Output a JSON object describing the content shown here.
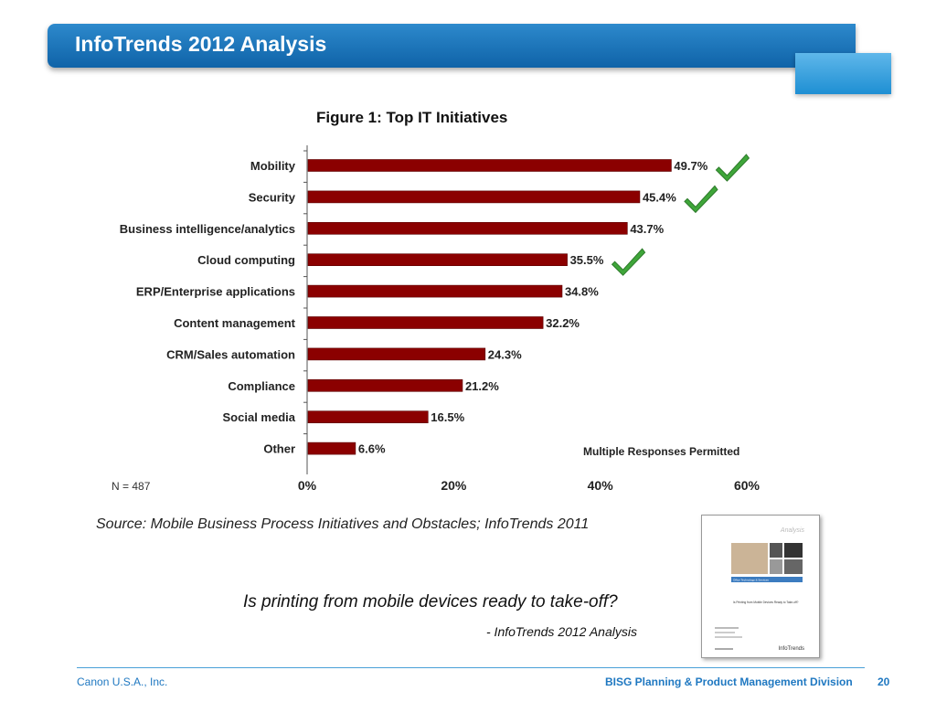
{
  "slide": {
    "title": "InfoTrends 2012 Analysis",
    "source_note": "Source: Mobile Business Process Initiatives and Obstacles; InfoTrends 2011",
    "quote": "Is printing from mobile devices ready to take-off?",
    "quote_attribution": "- InfoTrends 2012 Analysis",
    "footer_left": "Canon U.S.A., Inc.",
    "footer_right": "BISG Planning & Product Management Division",
    "page_number": "20"
  },
  "colors": {
    "bar_fill": "#8b0000",
    "title_bar": "#1670b8",
    "checkmark": "#3fa63a",
    "footer_text": "#1f78c1"
  },
  "chart_data": {
    "type": "bar",
    "orientation": "horizontal",
    "title": "Figure 1: Top IT Initiatives",
    "categories": [
      "Mobility",
      "Security",
      "Business intelligence/analytics",
      "Cloud computing",
      "ERP/Enterprise applications",
      "Content management",
      "CRM/Sales automation",
      "Compliance",
      "Social media",
      "Other"
    ],
    "values": [
      49.7,
      45.4,
      43.7,
      35.5,
      34.8,
      32.2,
      24.3,
      21.2,
      16.5,
      6.6
    ],
    "value_labels": [
      "49.7%",
      "45.4%",
      "43.7%",
      "35.5%",
      "34.8%",
      "32.2%",
      "24.3%",
      "21.2%",
      "16.5%",
      "6.6%"
    ],
    "checkmarked": [
      "Mobility",
      "Security",
      "Cloud computing"
    ],
    "xlim": [
      0,
      60
    ],
    "x_ticks": [
      "0%",
      "20%",
      "40%",
      "60%"
    ],
    "sample_size": "N = 487",
    "note": "Multiple Responses Permitted",
    "grid": false
  },
  "report_cover": {
    "header": "Analysis",
    "band": "Office Technology & Services",
    "headline": "Is Printing from Mobile Devices Ready to Take-off?",
    "logo": "InfoTrends"
  }
}
